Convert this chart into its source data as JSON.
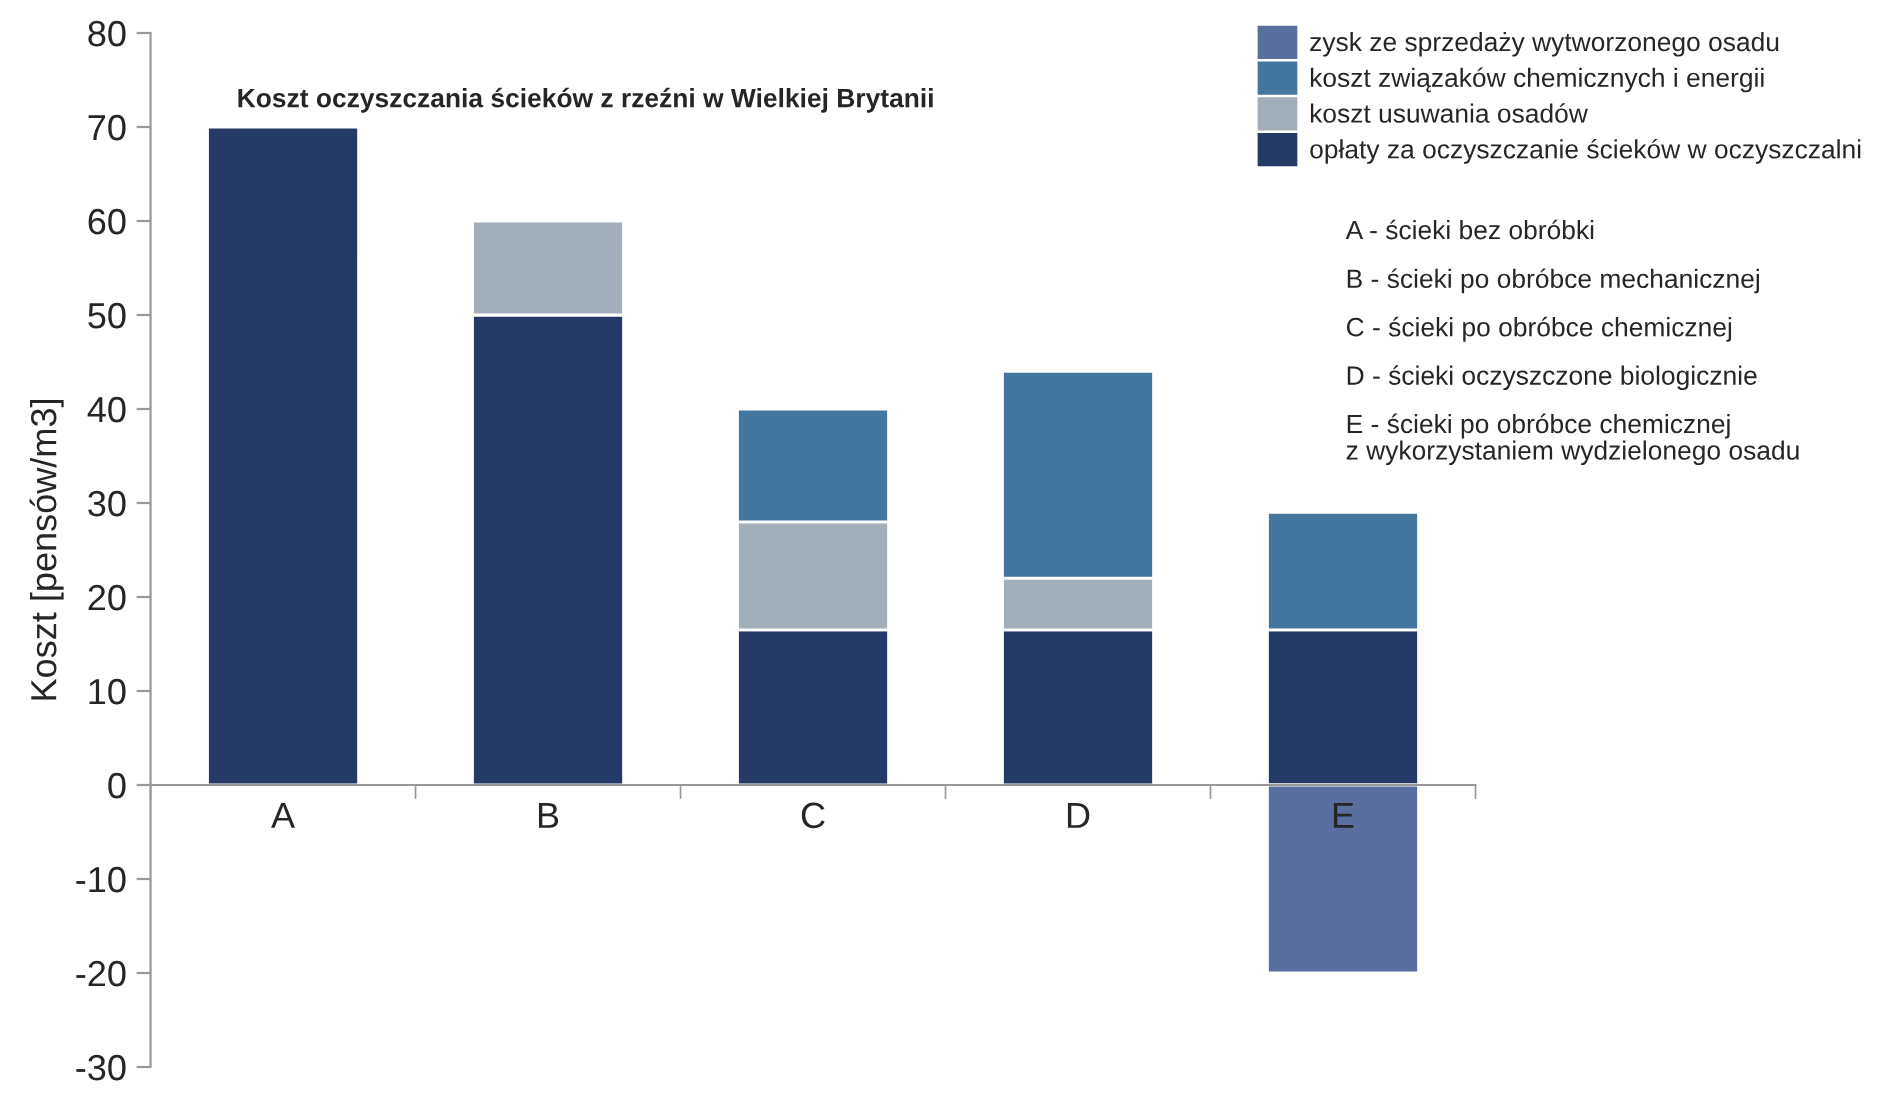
{
  "chart_data": {
    "type": "bar",
    "stacked": true,
    "title": "Koszt oczyszczania ścieków z rzeźni w Wielkiej Brytanii",
    "ylabel": "Koszt [pensów/m3]",
    "categories": [
      "A",
      "B",
      "C",
      "D",
      "E"
    ],
    "series": [
      {
        "name": "opłaty za oczyszczanie ścieków w oczyszczalni",
        "color": "#253a67",
        "values": [
          70,
          50,
          16.5,
          16.5,
          16.5
        ]
      },
      {
        "name": "koszt usuwania osadów",
        "color": "#a2afbb",
        "values": [
          null,
          10,
          11.5,
          5.5,
          null
        ]
      },
      {
        "name": "koszt związaków chemicznych i energii",
        "color": "#44779f",
        "values": [
          null,
          null,
          12,
          22,
          12.5
        ]
      },
      {
        "name": "zysk ze sprzedaży wytworzonego osadu",
        "color": "#5a6e9f",
        "values": [
          null,
          null,
          null,
          null,
          -20
        ]
      }
    ],
    "ylim": [
      -30,
      80
    ],
    "yticks": [
      -30,
      -20,
      -10,
      0,
      10,
      20,
      30,
      40,
      50,
      60,
      70,
      80
    ],
    "grid": false,
    "legend": "top right",
    "annotations": [
      "A - ścieki bez obróbki",
      "B - ścieki po obróbce mechanicznej",
      "C - ścieki po obróbce chemicznej",
      "D - ścieki oczyszczone biologicznie",
      "E - ścieki po obróbce chemicznej\nz wykorzystaniem wydzielonego osadu"
    ]
  }
}
